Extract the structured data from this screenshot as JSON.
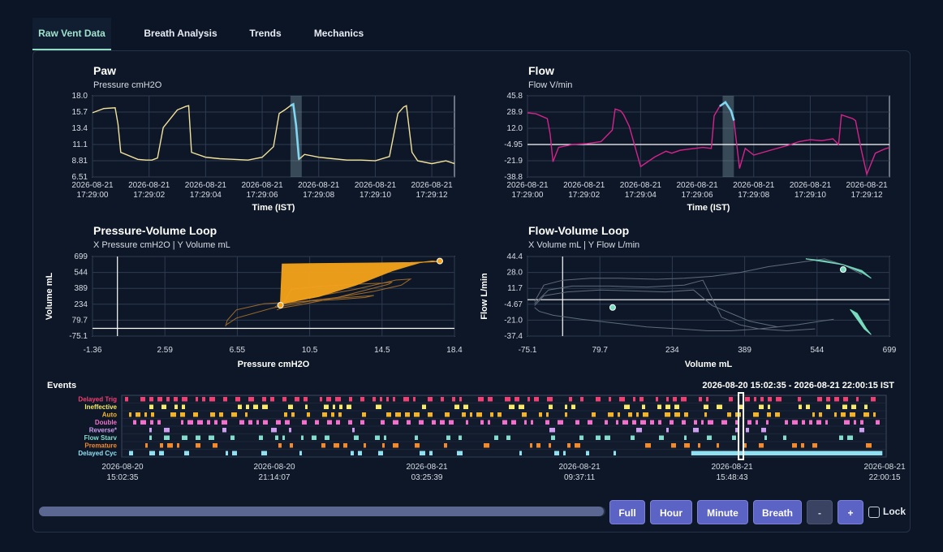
{
  "tabs": [
    {
      "label": "Raw Vent Data",
      "active": true
    },
    {
      "label": "Breath Analysis",
      "active": false
    },
    {
      "label": "Trends",
      "active": false
    },
    {
      "label": "Mechanics",
      "active": false
    }
  ],
  "colors": {
    "accent": "#8fdcc3",
    "paw_line": "#f3e29a",
    "flow_line": "#d6238c",
    "highlight": "#7fd7f2",
    "pv_loop": "#f5a31a",
    "fv_loop": "#78dbbd",
    "button": "#5b63c4"
  },
  "chart_data": [
    {
      "type": "line",
      "title": "Paw",
      "subtitle": "Pressure cmH2O",
      "xlabel": "Time (IST)",
      "ylabel": "",
      "ylim": [
        6.51,
        18.0
      ],
      "yticks": [
        "18.0",
        "15.7",
        "13.4",
        "11.1",
        "8.81",
        "6.51"
      ],
      "xtick_labels": [
        [
          "2026-08-21",
          "17:29:00"
        ],
        [
          "2026-08-21",
          "17:29:02"
        ],
        [
          "2026-08-21",
          "17:29:04"
        ],
        [
          "2026-08-21",
          "17:29:06"
        ],
        [
          "2026-08-21",
          "17:29:08"
        ],
        [
          "2026-08-21",
          "17:29:10"
        ],
        [
          "2026-08-21",
          "17:29:12"
        ]
      ],
      "xlim": [
        0,
        12.8
      ],
      "series": [
        {
          "x": [
            0,
            0.4,
            0.8,
            0.9,
            1.0,
            1.6,
            1.9,
            2.1,
            2.3,
            2.5,
            3.0,
            3.3,
            3.4,
            3.5,
            4.0,
            4.5,
            5.0,
            5.5,
            6.0,
            6.4,
            6.6,
            6.8,
            7.0,
            7.1,
            7.2,
            7.3,
            7.5,
            8.0,
            8.5,
            9.0,
            9.5,
            10.0,
            10.5,
            10.8,
            11.0,
            11.1,
            11.3,
            11.5,
            12.0,
            12.5,
            12.8
          ],
          "y": [
            15.6,
            16.2,
            16.3,
            14.0,
            10.0,
            9.0,
            8.9,
            8.9,
            9.2,
            13.5,
            16.0,
            16.5,
            16.6,
            10.0,
            9.3,
            9.1,
            9.0,
            8.9,
            9.3,
            10.8,
            15.5,
            16.0,
            16.6,
            16.8,
            13.8,
            9.0,
            9.7,
            9.3,
            9.1,
            8.9,
            8.9,
            8.8,
            9.4,
            15.5,
            16.4,
            16.6,
            10.0,
            8.8,
            8.4,
            8.8,
            8.4
          ]
        }
      ],
      "highlight_x": [
        7.0,
        7.4
      ]
    },
    {
      "type": "line",
      "title": "Flow",
      "subtitle": "Flow V/min",
      "xlabel": "Time (IST)",
      "ylabel": "",
      "ylim": [
        -38.8,
        45.8
      ],
      "yticks": [
        "45.8",
        "28.9",
        "12.0",
        "-4.95",
        "-21.9",
        "-38.8"
      ],
      "xtick_labels": [
        [
          "2026-08-21",
          "17:29:00"
        ],
        [
          "2026-08-21",
          "17:29:02"
        ],
        [
          "2026-08-21",
          "17:29:04"
        ],
        [
          "2026-08-21",
          "17:29:06"
        ],
        [
          "2026-08-21",
          "17:29:08"
        ],
        [
          "2026-08-21",
          "17:29:10"
        ],
        [
          "2026-08-21",
          "17:29:12"
        ]
      ],
      "xlim": [
        0,
        12.8
      ],
      "series": [
        {
          "x": [
            0,
            0.3,
            0.7,
            0.8,
            0.9,
            1.1,
            1.6,
            2.1,
            2.6,
            3.0,
            3.1,
            3.3,
            3.4,
            3.6,
            4.0,
            4.5,
            4.9,
            5.1,
            5.4,
            6.2,
            6.5,
            6.6,
            6.8,
            7.0,
            7.2,
            7.3,
            7.5,
            7.7,
            8.0,
            8.7,
            9.2,
            9.6,
            10.0,
            10.4,
            10.8,
            11.0,
            11.1,
            11.3,
            11.5,
            11.6,
            11.8,
            12.0,
            12.3,
            12.6,
            12.8
          ],
          "y": [
            28,
            27,
            22,
            6,
            -23,
            -8,
            -5,
            -4,
            -2,
            10,
            32,
            30,
            26,
            14,
            -28,
            -18,
            -12,
            -14,
            -11,
            -8,
            -9,
            25,
            35,
            39,
            30,
            20,
            -30,
            -9,
            -16,
            -10,
            -6,
            -2,
            0,
            -1,
            1,
            -5,
            26,
            24,
            22,
            20,
            -10,
            -36,
            -14,
            -10,
            -8
          ]
        }
      ],
      "highlight_x": [
        6.9,
        7.3
      ]
    },
    {
      "type": "scatter",
      "title": "Pressure-Volume Loop",
      "subtitle": "X Pressure cmH2O | Y Volume mL",
      "xlabel": "Pressure cmH2O",
      "ylabel": "Volume mL",
      "xlim": [
        -1.36,
        18.4
      ],
      "ylim": [
        -75.1,
        699
      ],
      "xticks": [
        "-1.36",
        "2.59",
        "6.55",
        "10.5",
        "14.5",
        "18.4"
      ],
      "yticks": [
        "699",
        "544",
        "389",
        "234",
        "79.7",
        "-75.1"
      ],
      "loop_current": {
        "x": [
          8.9,
          9.5,
          11.0,
          13.0,
          15.0,
          16.5,
          17.2,
          17.5,
          16.0,
          14.0,
          11.0,
          9.0
        ],
        "y": [
          240,
          260,
          310,
          420,
          560,
          640,
          655,
          650,
          640,
          635,
          630,
          625
        ]
      },
      "loop_history": [
        {
          "x": [
            8.9,
            9.2,
            10.0,
            12.0,
            14.0,
            15.5,
            16.0,
            15.2,
            13.0,
            10.5,
            9.0,
            8.6
          ],
          "y": [
            220,
            240,
            260,
            300,
            360,
            420,
            480,
            470,
            380,
            300,
            240,
            210
          ]
        },
        {
          "x": [
            8.9,
            9.1,
            9.5,
            11.0,
            13.0,
            14.5,
            15.0,
            14.8,
            12.0,
            10.0,
            9.0,
            8.7
          ],
          "y": [
            200,
            250,
            380,
            410,
            430,
            440,
            450,
            430,
            300,
            230,
            200,
            180
          ]
        },
        {
          "x": [
            5.9,
            6.0,
            6.5,
            8.0,
            10.0,
            12.0,
            13.5,
            14.0,
            11.0,
            8.5,
            6.5,
            5.9
          ],
          "y": [
            20,
            80,
            180,
            240,
            260,
            280,
            300,
            320,
            280,
            200,
            100,
            30
          ]
        }
      ],
      "markers": [
        {
          "x": 8.9,
          "y": 225
        },
        {
          "x": 17.6,
          "y": 655
        }
      ]
    },
    {
      "type": "scatter",
      "title": "Flow-Volume Loop",
      "subtitle": "X Volume mL | Y Flow L/min",
      "xlabel": "Volume mL",
      "ylabel": "Flow L/min",
      "xlim": [
        -75.1,
        699
      ],
      "ylim": [
        -37.4,
        44.4
      ],
      "xticks": [
        "-75.1",
        "79.7",
        "234",
        "389",
        "544",
        "699"
      ],
      "yticks": [
        "44.4",
        "28.0",
        "11.7",
        "-4.67",
        "-21.0",
        "-37.4"
      ],
      "loop_current": {
        "x": [
          520,
          560,
          600,
          640,
          660,
          640,
          600,
          560,
          520
        ],
        "y": [
          42,
          40,
          36,
          30,
          22,
          28,
          36,
          39,
          42
        ]
      },
      "loop_tail": {
        "x": [
          615,
          630,
          645,
          660,
          650,
          640,
          630
        ],
        "y": [
          -10,
          -20,
          -30,
          -36,
          -30,
          -22,
          -14
        ]
      },
      "loop_history": [
        {
          "x": [
            -60,
            -40,
            0,
            60,
            120,
            200,
            260,
            320,
            380,
            440,
            500,
            560,
            600,
            640
          ],
          "y": [
            -2,
            15,
            20,
            22,
            22,
            21,
            22,
            24,
            28,
            34,
            38,
            42,
            36,
            26
          ]
        },
        {
          "x": [
            -60,
            -30,
            20,
            100,
            180,
            260,
            300,
            340,
            380,
            420,
            480,
            540
          ],
          "y": [
            -4,
            10,
            14,
            14,
            13,
            15,
            20,
            -18,
            -26,
            -30,
            -32,
            -30
          ]
        },
        {
          "x": [
            -60,
            -40,
            10,
            80,
            150,
            220,
            280,
            320,
            360,
            400,
            460
          ],
          "y": [
            -6,
            4,
            8,
            10,
            9,
            8,
            10,
            -6,
            -14,
            -22,
            -28
          ]
        },
        {
          "x": [
            -60,
            -50,
            -20,
            40,
            110,
            180,
            250,
            310,
            360,
            420,
            500,
            580
          ],
          "y": [
            -8,
            -12,
            -16,
            -20,
            -24,
            -28,
            -30,
            -32,
            -32,
            -30,
            -26,
            -20
          ]
        }
      ],
      "markers": [
        {
          "x": 107,
          "y": -8
        },
        {
          "x": 600,
          "y": 31
        }
      ]
    }
  ],
  "events": {
    "title": "Events",
    "range": "2026-08-20 15:02:35 - 2026-08-21 22:00:15 IST",
    "rows": [
      {
        "label": "Delayed Trig",
        "color": "#f43f74"
      },
      {
        "label": "Ineffective",
        "color": "#f7ea6a"
      },
      {
        "label": "Auto",
        "color": "#f4b42a"
      },
      {
        "label": "Double",
        "color": "#f26fcc"
      },
      {
        "label": "Reverse*",
        "color": "#cf9ef0"
      },
      {
        "label": "Flow Starv",
        "color": "#86dccc"
      },
      {
        "label": "Premature",
        "color": "#f48a2a"
      },
      {
        "label": "Delayed Cyc",
        "color": "#8fe1f2"
      }
    ],
    "xtick_labels": [
      [
        "2026-08-20",
        "15:02:35"
      ],
      [
        "2026-08-20",
        "21:14:07"
      ],
      [
        "2026-08-21",
        "03:25:39"
      ],
      [
        "2026-08-21",
        "09:37:11"
      ],
      [
        "2026-08-21",
        "15:48:43"
      ],
      [
        "2026-08-21",
        "22:00:15"
      ]
    ],
    "window_position": 0.81
  },
  "controls": {
    "full": "Full",
    "hour": "Hour",
    "minute": "Minute",
    "breath": "Breath",
    "zoom_out": "-",
    "zoom_in": "+",
    "lock": "Lock"
  }
}
